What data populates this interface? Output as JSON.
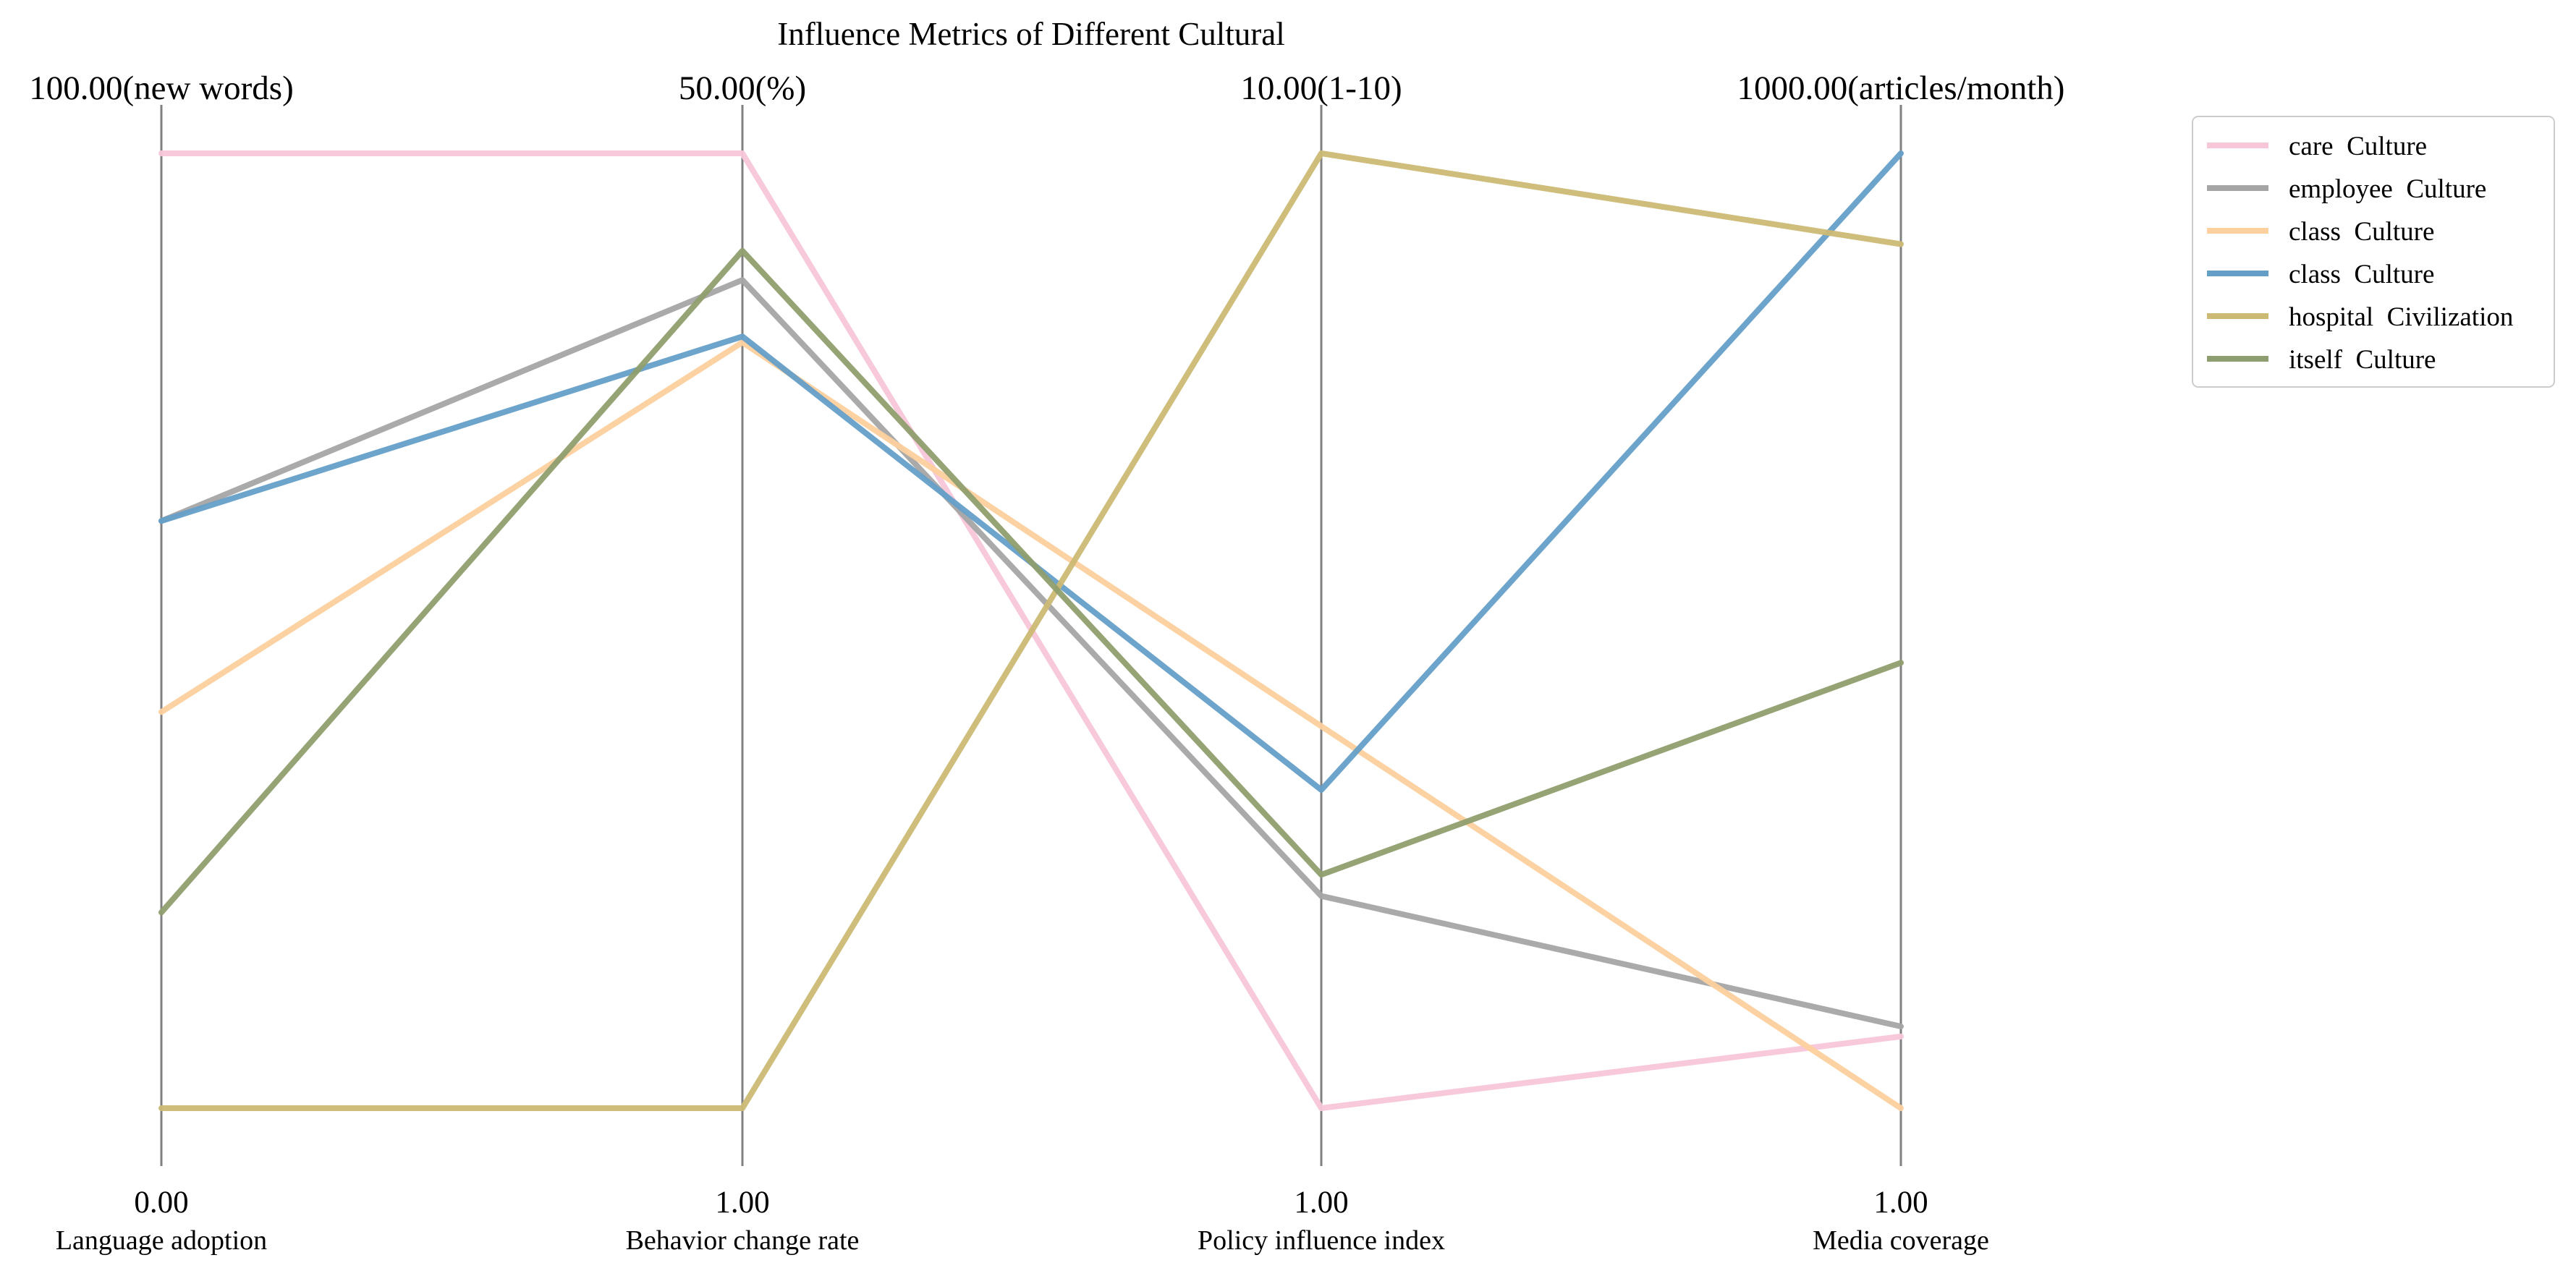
{
  "chart_data": {
    "type": "parallel_coordinates",
    "title": "Influence Metrics of Different Cultural",
    "axes": [
      {
        "name": "Language adoption",
        "top_label": "100.00(new words)",
        "bottom_label": "0.00",
        "min": 0,
        "max": 100
      },
      {
        "name": "Behavior change rate",
        "top_label": "50.00(%)",
        "bottom_label": "1.00",
        "min": 1,
        "max": 50
      },
      {
        "name": "Policy influence index",
        "top_label": "10.00(1-10)",
        "bottom_label": "1.00",
        "min": 1,
        "max": 10
      },
      {
        "name": "Media coverage",
        "top_label": "1000.00(articles/month)",
        "bottom_label": "1.00",
        "min": 1,
        "max": 1000
      }
    ],
    "series": [
      {
        "name": "care  Culture",
        "color": "#f7c6d9",
        "values": [
          100,
          50,
          1,
          76
        ]
      },
      {
        "name": "employee  Culture",
        "color": "#a5a5a5",
        "values": [
          61.5,
          43.5,
          3.0,
          86.5
        ]
      },
      {
        "name": "class  Culture",
        "color": "#fdd09e",
        "values": [
          41.5,
          40.3,
          4.6,
          1
        ]
      },
      {
        "name": "class  Culture",
        "color": "#659fc8",
        "values": [
          61.5,
          40.6,
          4.0,
          1000
        ]
      },
      {
        "name": "hospital  Civilization",
        "color": "#ccb974",
        "values": [
          0,
          1,
          10,
          905
        ]
      },
      {
        "name": "itself  Culture",
        "color": "#8f9e6e",
        "values": [
          20.5,
          45.0,
          3.2,
          467
        ]
      }
    ],
    "legend_position": "top-right",
    "grid": false
  }
}
